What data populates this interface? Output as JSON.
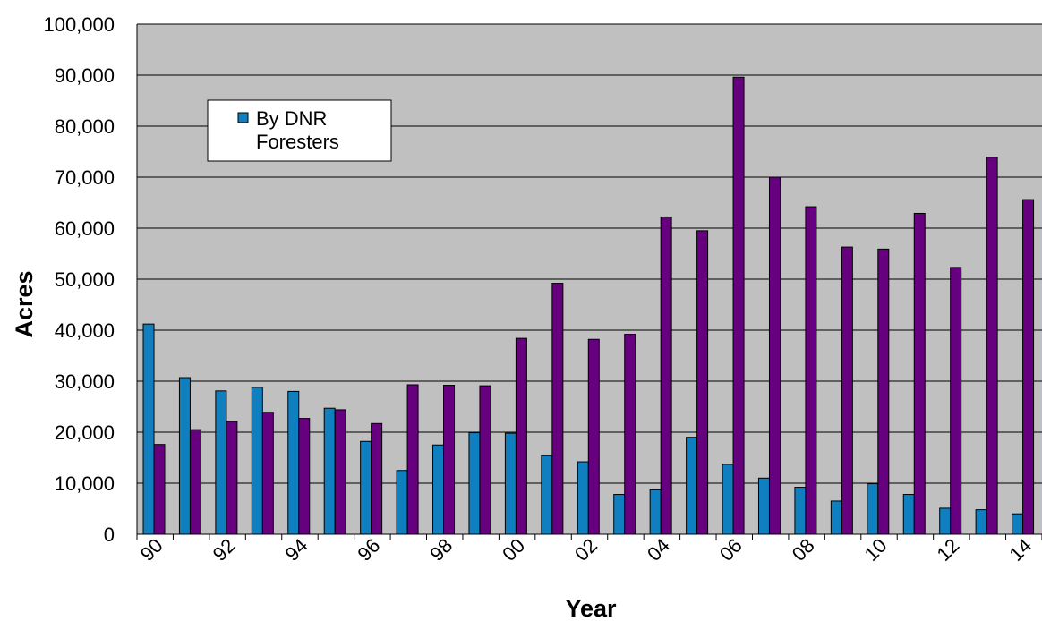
{
  "chart_data": {
    "type": "bar",
    "xlabel": "Year",
    "ylabel": "Acres",
    "ylim": [
      0,
      100000
    ],
    "yticks": [
      "0",
      "10,000",
      "20,000",
      "30,000",
      "40,000",
      "50,000",
      "60,000",
      "70,000",
      "80,000",
      "90,000",
      "100,000"
    ],
    "categories": [
      "90",
      "91",
      "92",
      "93",
      "94",
      "95",
      "96",
      "97",
      "98",
      "99",
      "00",
      "01",
      "02",
      "03",
      "04",
      "05",
      "06",
      "07",
      "08",
      "09",
      "10",
      "11",
      "12",
      "13",
      "14"
    ],
    "xtick_labels": [
      "90",
      "92",
      "94",
      "96",
      "98",
      "00",
      "02",
      "04",
      "06",
      "08",
      "10",
      "12",
      "14"
    ],
    "grid": true,
    "legend_position": "top-left",
    "series": [
      {
        "name": "By DNR Foresters",
        "color": "#0f7fc0",
        "values": [
          41200,
          30700,
          28100,
          28800,
          28000,
          24700,
          18200,
          12500,
          17500,
          19900,
          19800,
          15400,
          14200,
          7800,
          8700,
          19000,
          13700,
          11000,
          9200,
          6500,
          9900,
          7800,
          5100,
          4800,
          4000
        ]
      },
      {
        "color": "#66007f",
        "values": [
          17600,
          20500,
          22100,
          23900,
          22700,
          24400,
          21700,
          29300,
          29200,
          29100,
          38400,
          49200,
          38200,
          39200,
          62200,
          59500,
          89600,
          70000,
          64200,
          56300,
          55900,
          62900,
          52300,
          73900,
          65600
        ]
      }
    ]
  }
}
